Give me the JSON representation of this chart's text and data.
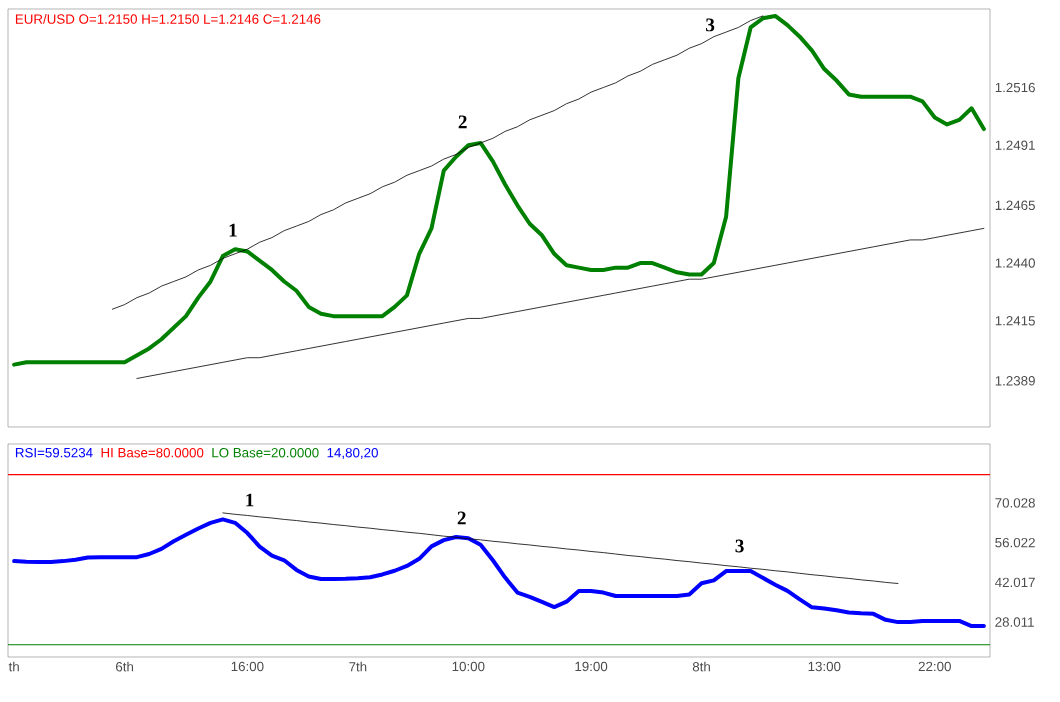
{
  "chart_data": [
    {
      "type": "line",
      "ylim": [
        1.2369,
        1.255
      ],
      "tick_labels": "y",
      "categories": [
        null,
        null,
        null,
        null,
        null,
        null,
        null,
        null,
        null,
        null,
        null,
        null,
        null,
        null,
        null,
        null,
        null,
        null,
        null,
        null,
        null,
        null,
        null,
        null,
        null,
        null,
        null,
        null,
        null,
        null,
        null,
        null,
        null,
        null,
        null,
        null,
        null,
        null,
        null,
        null,
        null,
        null,
        null,
        null,
        null,
        null,
        null,
        null,
        null,
        null,
        null,
        null,
        null,
        null,
        null,
        null,
        null,
        null,
        null,
        null,
        null,
        null,
        null,
        null,
        null,
        null,
        null,
        null,
        null,
        null,
        null,
        null,
        null,
        null,
        null,
        null,
        null,
        null,
        null,
        null
      ],
      "yticks": [
        1.2389,
        1.2415,
        {
          "value": 1.244,
          "label": "1.2440"
        },
        1.2465,
        1.2491,
        1.2516
      ],
      "annotations": [
        "EUR/USD O=1.2150 H=1.2150 L=1.2146 C=1.2146",
        "1",
        "2",
        "3"
      ],
      "series": [
        {
          "color": "#008000",
          "values": [
            1.2396,
            1.2397,
            1.2397,
            1.2397,
            1.2397,
            1.2397,
            1.2397,
            1.2397,
            1.2397,
            1.2397,
            1.24,
            1.2403,
            1.2407,
            1.2412,
            1.2417,
            1.2425,
            1.2432,
            1.2443,
            1.2446,
            1.2445,
            1.2441,
            1.2437,
            1.2432,
            1.2428,
            1.2421,
            1.2418,
            1.2417,
            1.2417,
            1.2417,
            1.2417,
            1.2417,
            1.2421,
            1.2426,
            1.2444,
            1.2455,
            1.248,
            1.2486,
            1.2491,
            1.2492,
            1.2484,
            1.2474,
            1.2465,
            1.2457,
            1.2452,
            1.2444,
            1.2439,
            1.2438,
            1.2437,
            1.2437,
            1.2438,
            1.2438,
            1.244,
            1.244,
            1.2438,
            1.2436,
            1.2435,
            1.2435,
            1.244,
            1.246,
            1.252,
            1.2542,
            1.2546,
            1.2547,
            1.2543,
            1.2538,
            1.2532,
            1.2524,
            1.2519,
            1.2513,
            1.2512,
            1.2512,
            1.2512,
            1.2512,
            1.2512,
            1.251,
            1.2503,
            1.25,
            1.2502,
            1.2507,
            1.2498
          ]
        },
        {
          "color": "#000000",
          "values": [
            null,
            null,
            null,
            null,
            null,
            null,
            null,
            null,
            1.242,
            1.2422,
            1.2425,
            1.2427,
            1.243,
            1.2432,
            1.2434,
            1.2437,
            1.2439,
            1.2442,
            1.2444,
            1.2446,
            1.2449,
            1.2451,
            1.2454,
            1.2456,
            1.2458,
            1.2461,
            1.2463,
            1.2466,
            1.2468,
            1.247,
            1.2473,
            1.2475,
            1.2478,
            1.248,
            1.2482,
            1.2485,
            1.2487,
            1.249,
            1.2492,
            1.2494,
            1.2497,
            1.2499,
            1.2502,
            1.2504,
            1.2506,
            1.2509,
            1.2511,
            1.2514,
            1.2516,
            1.2518,
            1.2521,
            1.2523,
            1.2526,
            1.2528,
            1.253,
            1.2533,
            1.2535,
            1.2538,
            1.254,
            1.2542,
            1.2545,
            1.2547,
            null,
            null,
            null,
            null,
            null,
            null,
            null,
            null,
            null,
            null,
            null,
            null,
            null,
            null,
            null,
            null,
            null,
            null
          ]
        },
        {
          "color": "#000000",
          "values": [
            null,
            null,
            null,
            null,
            null,
            null,
            null,
            null,
            null,
            null,
            1.239,
            1.2391,
            1.2392,
            1.2393,
            1.2394,
            1.2395,
            1.2396,
            1.2397,
            1.2398,
            1.2399,
            1.2399,
            1.24,
            1.2401,
            1.2402,
            1.2403,
            1.2404,
            1.2405,
            1.2406,
            1.2407,
            1.2408,
            1.2409,
            1.241,
            1.2411,
            1.2412,
            1.2413,
            1.2414,
            1.2415,
            1.2416,
            1.2416,
            1.2417,
            1.2418,
            1.2419,
            1.242,
            1.2421,
            1.2422,
            1.2423,
            1.2424,
            1.2425,
            1.2426,
            1.2427,
            1.2428,
            1.2429,
            1.243,
            1.2431,
            1.2432,
            1.2433,
            1.2433,
            1.2434,
            1.2435,
            1.2436,
            1.2437,
            1.2438,
            1.2439,
            1.244,
            1.2441,
            1.2442,
            1.2443,
            1.2444,
            1.2445,
            1.2446,
            1.2447,
            1.2448,
            1.2449,
            1.245,
            1.245,
            1.2451,
            1.2452,
            1.2453,
            1.2454,
            1.2455
          ]
        }
      ]
    },
    {
      "type": "line",
      "ylim": [
        15.7,
        90.8
      ],
      "categories": [
        "th",
        null,
        null,
        null,
        null,
        null,
        null,
        null,
        null,
        "6th",
        null,
        null,
        null,
        null,
        null,
        null,
        null,
        null,
        null,
        "16:00",
        null,
        null,
        null,
        null,
        null,
        null,
        null,
        null,
        "7th",
        null,
        null,
        null,
        null,
        null,
        null,
        null,
        null,
        "10:00",
        null,
        null,
        null,
        null,
        null,
        null,
        null,
        null,
        null,
        "19:00",
        null,
        null,
        null,
        null,
        null,
        null,
        null,
        null,
        "8th",
        null,
        null,
        null,
        null,
        null,
        null,
        null,
        null,
        null,
        "13:00",
        null,
        null,
        null,
        null,
        null,
        null,
        null,
        null,
        "22:00",
        null,
        null,
        null,
        null
      ],
      "yticks": [
        28.011,
        42.017,
        56.022,
        70.028
      ],
      "annotations": [
        "RSI=59.5234",
        "HI Base=80.0000",
        "LO Base=20.0000",
        "14,80,20",
        "1",
        "2",
        "3"
      ],
      "ref_lines": [
        {
          "axis": "y",
          "value": 80,
          "color": "#ff0000"
        },
        {
          "axis": "y",
          "value": 20,
          "color": "#008000"
        }
      ],
      "series": [
        {
          "color": "#0000ff",
          "values": [
            49.5,
            49.3,
            49.2,
            49.2,
            49.5,
            50.0,
            50.8,
            50.9,
            50.9,
            50.9,
            50.9,
            52.0,
            53.8,
            56.5,
            58.8,
            61.0,
            63.0,
            64.2,
            63.0,
            59.4,
            54.6,
            51.4,
            49.8,
            46.4,
            44.1,
            43.2,
            43.2,
            43.3,
            43.5,
            43.8,
            44.8,
            46.1,
            47.8,
            50.3,
            54.7,
            56.9,
            58.0,
            57.6,
            55.3,
            49.8,
            43.7,
            38.4,
            36.9,
            35.1,
            33.3,
            35.2,
            39.0,
            39.0,
            38.4,
            37.2,
            37.2,
            37.2,
            37.2,
            37.2,
            37.2,
            37.7,
            41.7,
            42.7,
            46.0,
            46.0,
            46.0,
            43.6,
            41.2,
            39.0,
            36.0,
            33.2,
            32.8,
            32.2,
            31.4,
            31.1,
            30.9,
            28.8,
            28.0,
            28.0,
            28.4,
            28.4,
            28.4,
            28.4,
            26.6,
            26.6
          ]
        },
        {
          "color": "#000000",
          "values": [
            null,
            null,
            null,
            null,
            null,
            null,
            null,
            null,
            null,
            null,
            null,
            null,
            null,
            null,
            null,
            null,
            null,
            66.5,
            66.0,
            65.6,
            65.1,
            64.7,
            64.2,
            63.8,
            63.3,
            62.9,
            62.4,
            62.0,
            61.5,
            61.1,
            60.6,
            60.2,
            59.7,
            59.3,
            58.8,
            58.3,
            57.9,
            57.4,
            57.0,
            56.5,
            56.1,
            55.6,
            55.2,
            54.7,
            54.3,
            53.8,
            53.4,
            52.9,
            52.5,
            52.0,
            51.5,
            51.1,
            50.6,
            50.2,
            49.7,
            49.3,
            48.8,
            48.4,
            47.9,
            47.5,
            47.0,
            46.6,
            46.1,
            45.7,
            45.2,
            44.7,
            44.3,
            43.8,
            43.4,
            42.9,
            42.5,
            42.0,
            41.6,
            null,
            null,
            null,
            null,
            null,
            null,
            null
          ]
        }
      ]
    }
  ]
}
